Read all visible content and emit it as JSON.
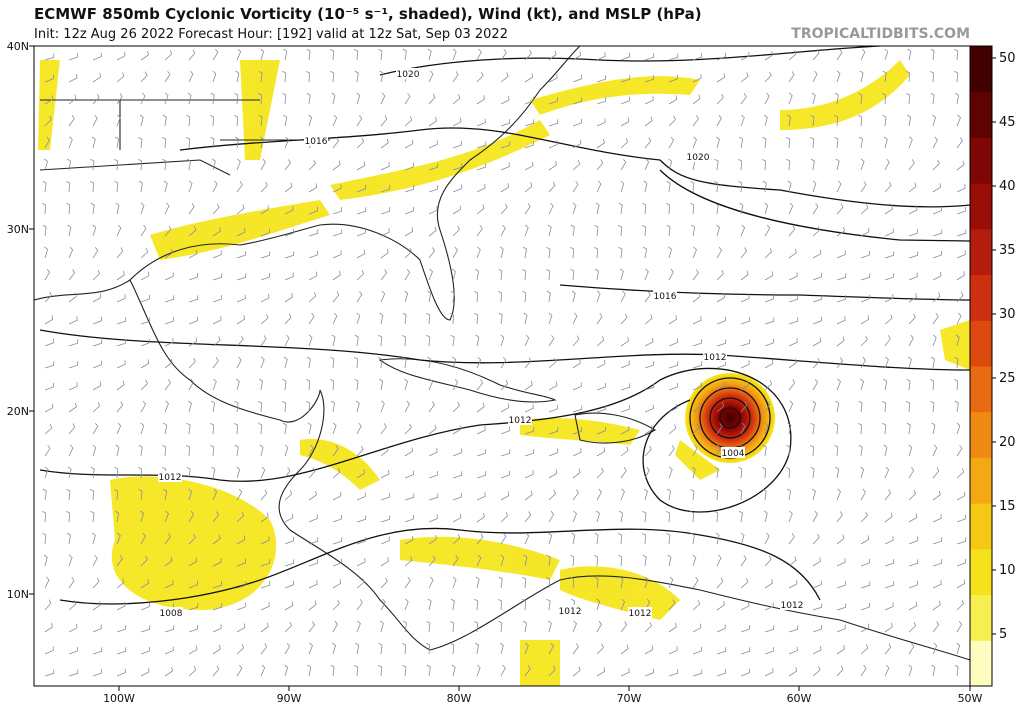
{
  "header": {
    "title": "ECMWF 850mb Cyclonic Vorticity (10⁻⁵ s⁻¹, shaded), Wind (kt), and MSLP (hPa)",
    "subtitle": "Init: 12z Aug 26 2022   Forecast Hour: [192]   valid at 12z Sat, Sep 03 2022",
    "site": "TROPICALTIDBITS.COM"
  },
  "axes": {
    "lat_labels": [
      "40N",
      "30N",
      "20N",
      "10N"
    ],
    "lon_labels": [
      "100W",
      "90W",
      "80W",
      "70W",
      "60W",
      "50W"
    ]
  },
  "colorbar": {
    "ticks": [
      5,
      10,
      15,
      20,
      25,
      30,
      35,
      40,
      45,
      50
    ]
  },
  "isobar_labels": [
    "1020",
    "1020",
    "1016",
    "1016",
    "1012",
    "1012",
    "1012",
    "1012",
    "1012",
    "1012",
    "1004",
    "1008"
  ]
}
